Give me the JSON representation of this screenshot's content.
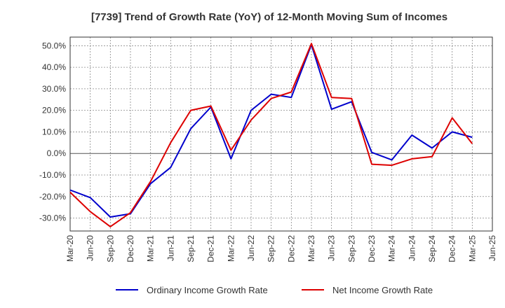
{
  "chart_data": {
    "type": "line",
    "title": "[7739]  Trend of Growth Rate (YoY) of 12-Month Moving Sum of Incomes",
    "xlabel": "",
    "ylabel": "",
    "ylim": [
      -36,
      54
    ],
    "yticks": [
      50,
      40,
      30,
      20,
      10,
      0,
      -10,
      -20,
      -30
    ],
    "ytick_labels": [
      "50.0%",
      "40.0%",
      "30.0%",
      "20.0%",
      "10.0%",
      "0.0%",
      "-10.0%",
      "-20.0%",
      "-30.0%"
    ],
    "x_tick_labels": [
      "Mar-20",
      "Jun-20",
      "Sep-20",
      "Dec-20",
      "Mar-21",
      "Jun-21",
      "Sep-21",
      "Dec-21",
      "Mar-22",
      "Jun-22",
      "Sep-22",
      "Dec-22",
      "Mar-23",
      "Jun-23",
      "Sep-23",
      "Dec-23",
      "Mar-24",
      "Jun-24",
      "Sep-24",
      "Dec-24",
      "Mar-25",
      "Jun-25"
    ],
    "categories": [
      "Mar-20",
      "Jun-20",
      "Sep-20",
      "Dec-20",
      "Mar-21",
      "Jun-21",
      "Sep-21",
      "Dec-21",
      "Mar-22",
      "Jun-22",
      "Sep-22",
      "Dec-22",
      "Mar-23",
      "Jun-23",
      "Sep-23",
      "Dec-23",
      "Mar-24",
      "Jun-24",
      "Sep-24",
      "Dec-24",
      "Mar-25"
    ],
    "grid": true,
    "legend_position": "bottom",
    "series": [
      {
        "name": "Ordinary Income Growth Rate",
        "color": "#0000cc",
        "values": [
          -17.0,
          -20.5,
          -29.5,
          -28.0,
          -14.0,
          -6.5,
          11.5,
          21.5,
          -2.5,
          20.0,
          27.5,
          26.0,
          50.5,
          20.5,
          24.0,
          0.5,
          -3.0,
          8.5,
          2.5,
          10.0,
          7.5
        ]
      },
      {
        "name": "Net Income Growth Rate",
        "color": "#dd0000",
        "values": [
          -18.0,
          -27.0,
          -34.0,
          -27.5,
          -13.0,
          5.0,
          20.0,
          22.0,
          1.5,
          15.5,
          25.5,
          28.5,
          51.0,
          26.0,
          25.5,
          -5.0,
          -5.5,
          -2.5,
          -1.5,
          16.5,
          4.5
        ]
      }
    ]
  }
}
